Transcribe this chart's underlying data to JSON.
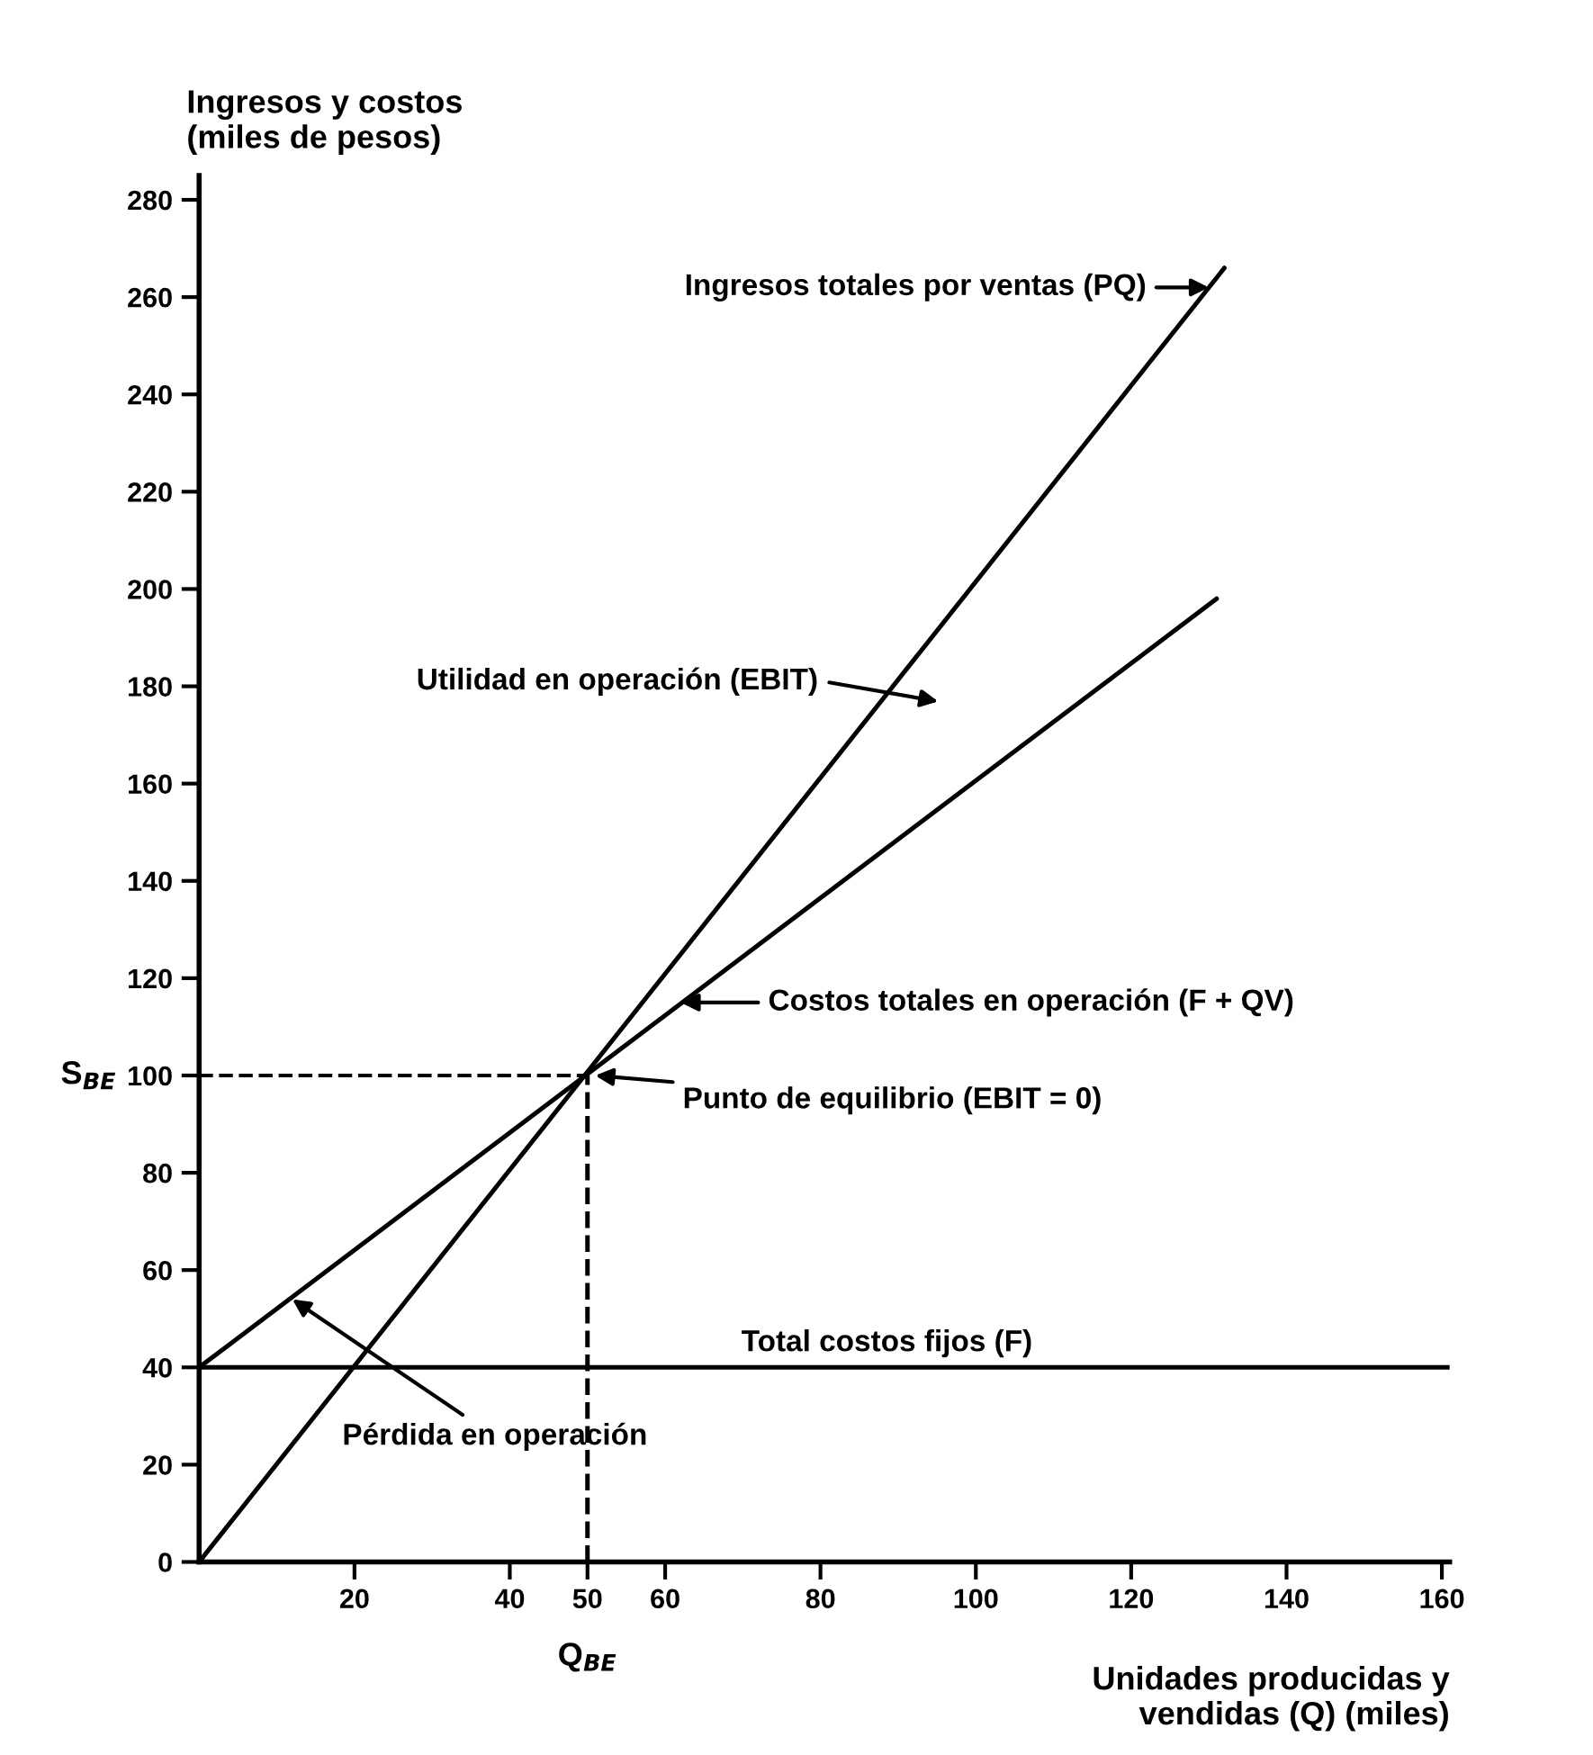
{
  "chart_data": {
    "type": "line",
    "ylabel": "Ingresos y costos\n(miles de pesos)",
    "xlabel": "Unidades producidas y\nvendidas (Q) (miles)",
    "xlim": [
      0,
      161
    ],
    "ylim": [
      0,
      285
    ],
    "xticks": [
      20,
      40,
      50,
      60,
      80,
      100,
      120,
      140,
      160
    ],
    "yticks": [
      0,
      20,
      40,
      60,
      80,
      100,
      120,
      140,
      160,
      180,
      200,
      220,
      240,
      260,
      280
    ],
    "series": [
      {
        "color": "#000000",
        "x": [
          0,
          132
        ],
        "values": [
          0,
          266
        ]
      },
      {
        "color": "#000000",
        "x": [
          0,
          131
        ],
        "values": [
          40,
          198
        ]
      },
      {
        "name": "Total costos fijos (F)",
        "color": "#000000",
        "x": [
          0,
          161
        ],
        "values": [
          40,
          40
        ]
      }
    ],
    "ref_lines": [
      {
        "axis": "x",
        "value": 50,
        "label": "Q$_{BE}$",
        "line_style": "dashed",
        "color": "#000000"
      },
      {
        "axis": "y",
        "value": 100,
        "label": "S$_{BE}$",
        "line_style": "dashed",
        "color": "#000000"
      }
    ],
    "annotations": [
      {
        "text": "Ingresos totales por ventas (PQ)",
        "x": 130,
        "y": 262
      },
      "Utilidad en operación (EBIT)",
      {
        "text": "Costos totales en operación (F + QV)",
        "x": 62,
        "y": 115
      },
      {
        "text": "Punto de equilibrio (EBIT = 0)",
        "x": 51,
        "y": 100
      },
      {
        "text": "Pérdida en operación",
        "x": 12,
        "y": 54
      }
    ],
    "line_style": "solid",
    "marker": "none",
    "grid": false,
    "legend": false
  }
}
